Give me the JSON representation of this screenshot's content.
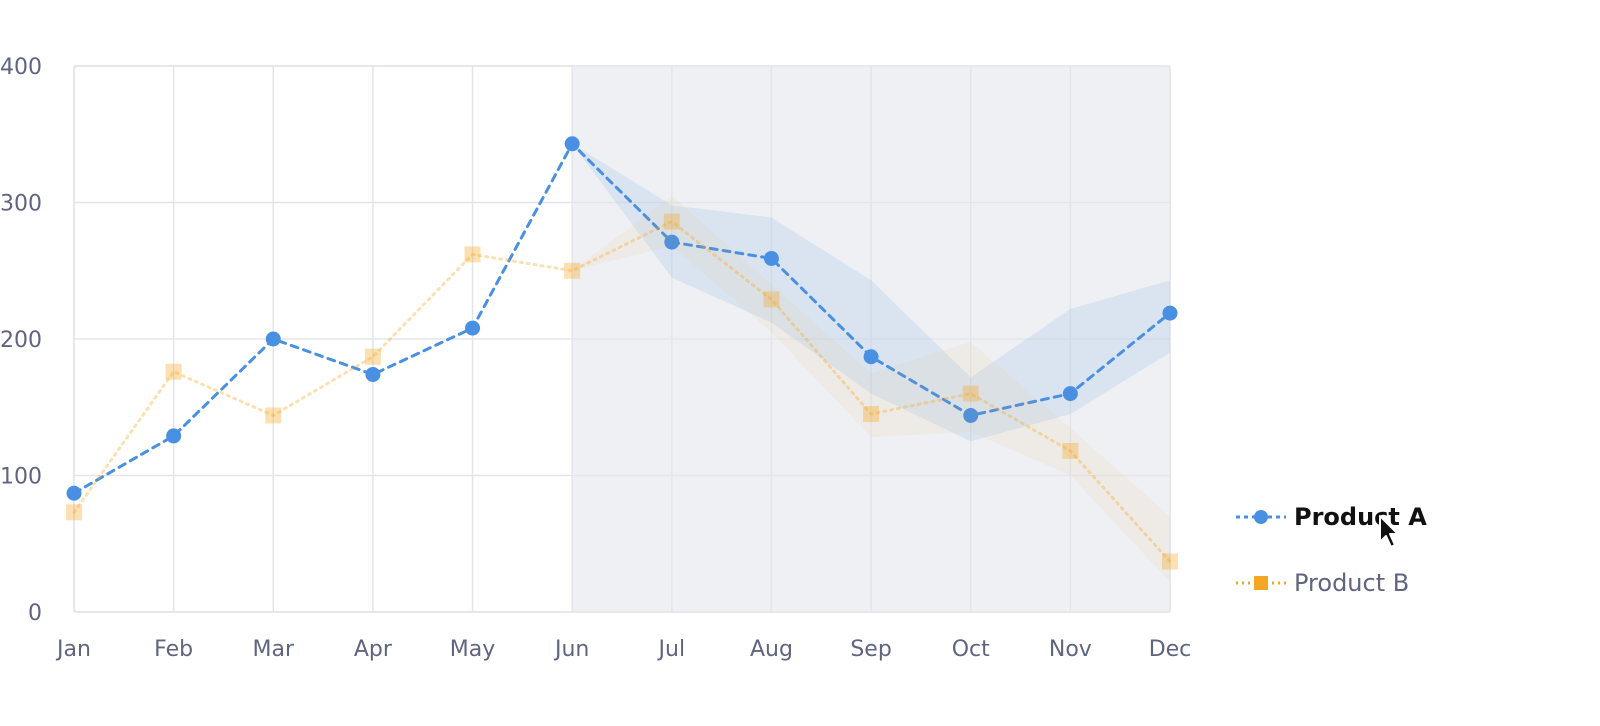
{
  "chart_data": {
    "type": "line",
    "categories": [
      "Jan",
      "Feb",
      "Mar",
      "Apr",
      "May",
      "Jun",
      "Jul",
      "Aug",
      "Sep",
      "Oct",
      "Nov",
      "Dec"
    ],
    "ylim": [
      0,
      400
    ],
    "yticks": [
      "0",
      "100",
      "200",
      "300",
      "400"
    ],
    "grid": true,
    "legend_position": "right",
    "forecast_start": "Jun",
    "series": [
      {
        "name": "Product A",
        "color": "#4a90e2",
        "marker": "circle",
        "line_style": "dashed",
        "values": [
          87,
          129,
          200,
          174,
          208,
          343,
          271,
          259,
          187,
          144,
          160,
          219
        ],
        "band_low": [
          null,
          null,
          null,
          null,
          null,
          343,
          245,
          212,
          160,
          125,
          145,
          190
        ],
        "band_high": [
          null,
          null,
          null,
          null,
          null,
          343,
          298,
          289,
          243,
          172,
          222,
          243
        ]
      },
      {
        "name": "Product B",
        "color": "#f5a623",
        "marker": "square",
        "line_style": "dotted",
        "highlighted": false,
        "values": [
          73,
          176,
          144,
          187,
          262,
          250,
          286,
          229,
          145,
          160,
          118,
          37
        ],
        "band_low": [
          null,
          null,
          null,
          null,
          null,
          250,
          268,
          205,
          128,
          132,
          100,
          22
        ],
        "band_high": [
          null,
          null,
          null,
          null,
          null,
          250,
          305,
          240,
          175,
          198,
          135,
          70
        ]
      }
    ],
    "highlighted_series": "Product A"
  },
  "legend": {
    "items": [
      {
        "label": "Product A",
        "active": true
      },
      {
        "label": "Product B",
        "active": false
      }
    ]
  }
}
